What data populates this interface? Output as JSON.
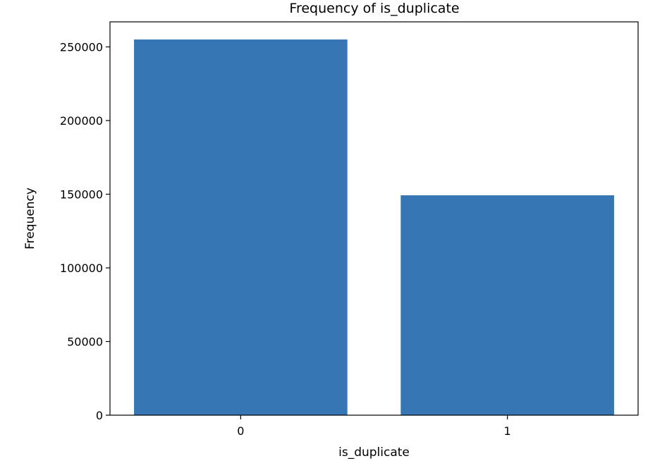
{
  "chart_data": {
    "type": "bar",
    "title": "Frequency of is_duplicate",
    "xlabel": "is_duplicate",
    "ylabel": "Frequency",
    "categories": [
      "0",
      "1"
    ],
    "values": [
      255024,
      149263
    ],
    "ylim": [
      0,
      267000
    ],
    "yticks": [
      0,
      50000,
      100000,
      150000,
      200000,
      250000
    ],
    "ytick_labels": [
      "0",
      "50000",
      "100000",
      "150000",
      "200000",
      "250000"
    ],
    "bar_color": "#3776b4",
    "grid": false,
    "legend": "none"
  }
}
